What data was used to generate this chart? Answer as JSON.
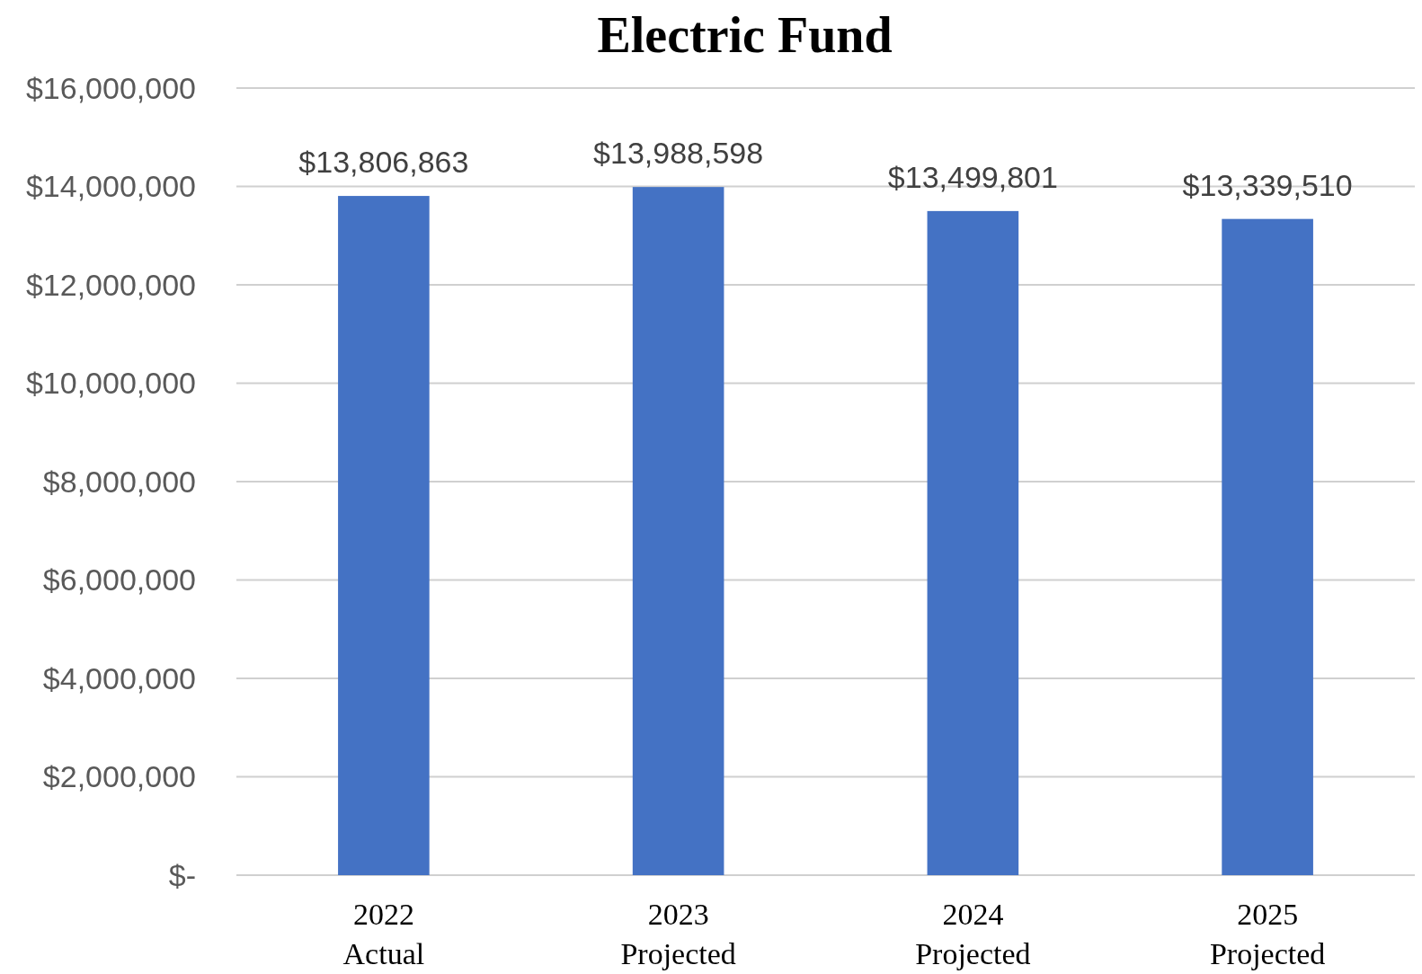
{
  "chart_data": {
    "type": "bar",
    "title": "Electric Fund",
    "categories": [
      "2022\nActual",
      "2023\nProjected",
      "2024\nProjected",
      "2025\nProjected"
    ],
    "values": [
      13806863,
      13988598,
      13499801,
      13339510
    ],
    "value_labels": [
      "$13,806,863",
      "$13,988,598",
      "$13,499,801",
      "$13,339,510"
    ],
    "color": "#4472c4",
    "ylim": [
      0,
      16000000
    ],
    "yticks": [
      {
        "value": 0,
        "label": "$-"
      },
      {
        "value": 2000000,
        "label": "$2,000,000"
      },
      {
        "value": 4000000,
        "label": "$4,000,000"
      },
      {
        "value": 6000000,
        "label": "$6,000,000"
      },
      {
        "value": 8000000,
        "label": "$8,000,000"
      },
      {
        "value": 10000000,
        "label": "$10,000,000"
      },
      {
        "value": 12000000,
        "label": "$12,000,000"
      },
      {
        "value": 14000000,
        "label": "$14,000,000"
      },
      {
        "value": 16000000,
        "label": "$16,000,000"
      }
    ],
    "grid": "y"
  }
}
